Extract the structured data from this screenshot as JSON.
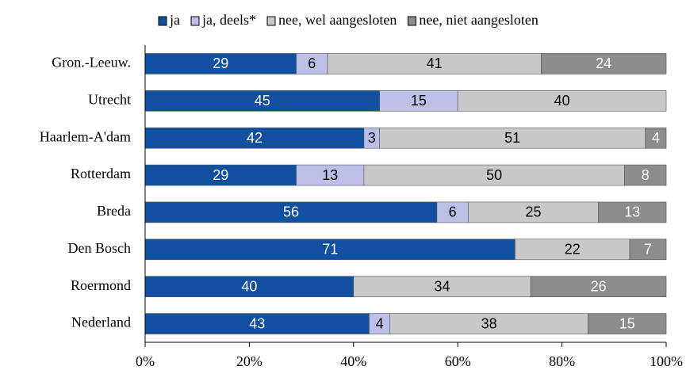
{
  "chart_data": {
    "type": "stacked-barh",
    "categories": [
      "Gron.-Leeuw.",
      "Utrecht",
      "Haarlem-A'dam",
      "Rotterdam",
      "Breda",
      "Den Bosch",
      "Roermond",
      "Nederland"
    ],
    "series": [
      {
        "name": "ja",
        "color": "#1150a0",
        "label_color": "#ffffff",
        "values": [
          29,
          45,
          42,
          29,
          56,
          71,
          40,
          43
        ]
      },
      {
        "name": "ja, deels*",
        "color": "#bcc0e8",
        "label_color": "#000000",
        "values": [
          6,
          15,
          3,
          13,
          6,
          null,
          null,
          4
        ]
      },
      {
        "name": "nee, wel aangesloten",
        "color": "#c8c8c8",
        "label_color": "#000000",
        "values": [
          41,
          40,
          51,
          50,
          25,
          22,
          34,
          38
        ]
      },
      {
        "name": "nee, niet aangesloten",
        "color": "#8c8c8c",
        "label_color": "#ffffff",
        "values": [
          24,
          null,
          4,
          8,
          13,
          7,
          26,
          15
        ]
      }
    ],
    "xlim": [
      0,
      100
    ],
    "xticks": [
      {
        "value": 0,
        "label": "0%"
      },
      {
        "value": 20,
        "label": "20%"
      },
      {
        "value": 40,
        "label": "40%"
      },
      {
        "value": 60,
        "label": "60%"
      },
      {
        "value": 80,
        "label": "80%"
      },
      {
        "value": 100,
        "label": "100%"
      }
    ],
    "grid": false,
    "legend": "top"
  }
}
